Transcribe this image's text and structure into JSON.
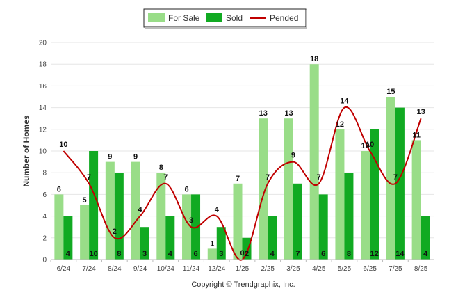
{
  "chart_data": {
    "type": "bar",
    "ylabel": "Number of Homes",
    "ylim": [
      0,
      20
    ],
    "y_ticks": [
      0,
      2,
      4,
      6,
      8,
      10,
      12,
      14,
      16,
      18,
      20
    ],
    "grid": true,
    "legend_position": "top-center",
    "categories": [
      "6/24",
      "7/24",
      "8/24",
      "9/24",
      "10/24",
      "11/24",
      "12/24",
      "1/25",
      "2/25",
      "3/25",
      "4/25",
      "5/25",
      "6/25",
      "7/25",
      "8/25"
    ],
    "series": [
      {
        "name": "For Sale",
        "type": "bar",
        "color": "#99dd88",
        "values": [
          6,
          5,
          9,
          9,
          8,
          6,
          1,
          7,
          13,
          13,
          18,
          12,
          10,
          15,
          11
        ]
      },
      {
        "name": "Sold",
        "type": "bar",
        "color": "#11aa22",
        "values": [
          4,
          10,
          8,
          3,
          4,
          6,
          3,
          2,
          4,
          7,
          6,
          8,
          12,
          14,
          4
        ]
      },
      {
        "name": "Pended",
        "type": "line",
        "color": "#c00000",
        "values": [
          10,
          7,
          2,
          4,
          7,
          3,
          4,
          0,
          7,
          9,
          7,
          14,
          10,
          7,
          13
        ]
      }
    ]
  },
  "footer": {
    "copyright": "Copyright © Trendgraphix, Inc."
  }
}
